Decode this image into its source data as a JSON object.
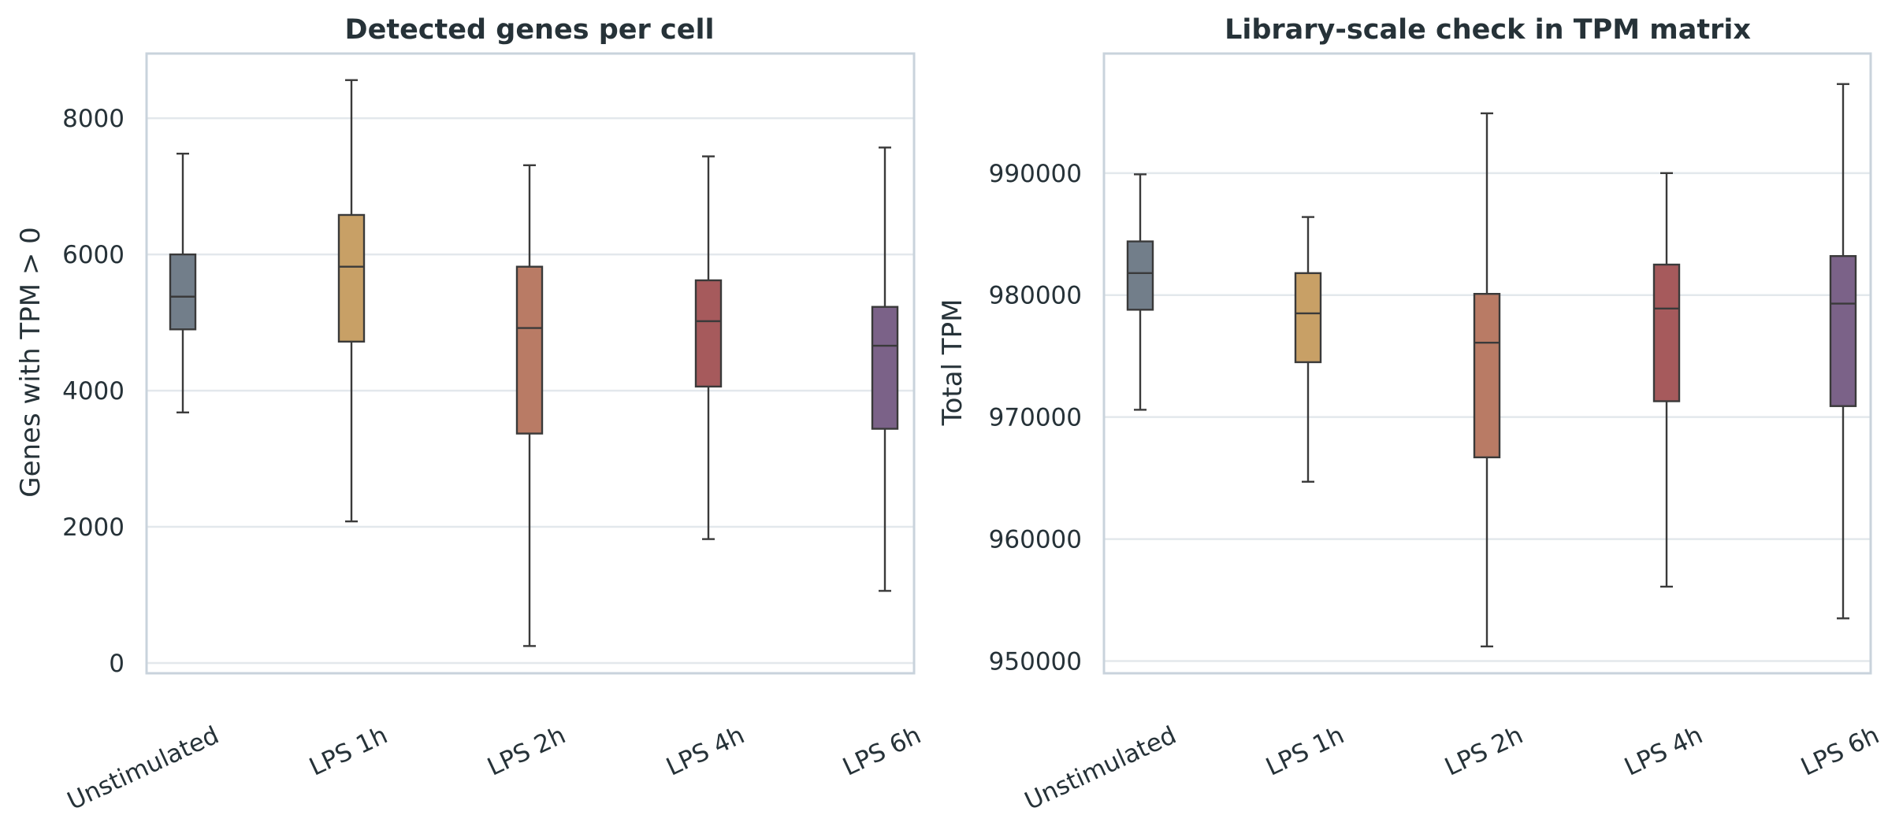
{
  "chart_data": [
    {
      "type": "box",
      "title": "Detected genes per cell",
      "xlabel": "",
      "ylabel": "Genes with TPM > 0",
      "ylim": [
        -150,
        8950
      ],
      "yticks": [
        0,
        2000,
        4000,
        6000,
        8000
      ],
      "ytick_labels": [
        "0",
        "2000",
        "4000",
        "6000",
        "8000"
      ],
      "grid": true,
      "categories": [
        "Unstimulated",
        "LPS 1h",
        "LPS 2h",
        "LPS 4h",
        "LPS 6h"
      ],
      "colors": [
        "#727e8a",
        "#c8a066",
        "#b97b65",
        "#a65a5c",
        "#7b6288"
      ],
      "boxes": [
        {
          "whisker_low": 3680,
          "q1": 4900,
          "median": 5380,
          "q3": 6000,
          "whisker_high": 7480
        },
        {
          "whisker_low": 2080,
          "q1": 4720,
          "median": 5820,
          "q3": 6580,
          "whisker_high": 8560
        },
        {
          "whisker_low": 250,
          "q1": 3370,
          "median": 4920,
          "q3": 5820,
          "whisker_high": 7310
        },
        {
          "whisker_low": 1820,
          "q1": 4060,
          "median": 5020,
          "q3": 5620,
          "whisker_high": 7440
        },
        {
          "whisker_low": 1060,
          "q1": 3440,
          "median": 4660,
          "q3": 5230,
          "whisker_high": 7570
        }
      ]
    },
    {
      "type": "box",
      "title": "Library-scale check in TPM matrix",
      "xlabel": "",
      "ylabel": "Total TPM",
      "ylim": [
        949000,
        999800
      ],
      "yticks": [
        950000,
        960000,
        970000,
        980000,
        990000
      ],
      "ytick_labels": [
        "950000",
        "960000",
        "970000",
        "980000",
        "990000"
      ],
      "grid": true,
      "categories": [
        "Unstimulated",
        "LPS 1h",
        "LPS 2h",
        "LPS 4h",
        "LPS 6h"
      ],
      "colors": [
        "#727e8a",
        "#c8a066",
        "#b97b65",
        "#a65a5c",
        "#7b6288"
      ],
      "boxes": [
        {
          "whisker_low": 970600,
          "q1": 978800,
          "median": 981800,
          "q3": 984400,
          "whisker_high": 989900
        },
        {
          "whisker_low": 964700,
          "q1": 974500,
          "median": 978500,
          "q3": 981800,
          "whisker_high": 986400
        },
        {
          "whisker_low": 951200,
          "q1": 966700,
          "median": 976100,
          "q3": 980100,
          "whisker_high": 994900
        },
        {
          "whisker_low": 956100,
          "q1": 971300,
          "median": 978900,
          "q3": 982500,
          "whisker_high": 990000
        },
        {
          "whisker_low": 953500,
          "q1": 970900,
          "median": 979300,
          "q3": 983200,
          "whisker_high": 997300
        }
      ]
    }
  ]
}
